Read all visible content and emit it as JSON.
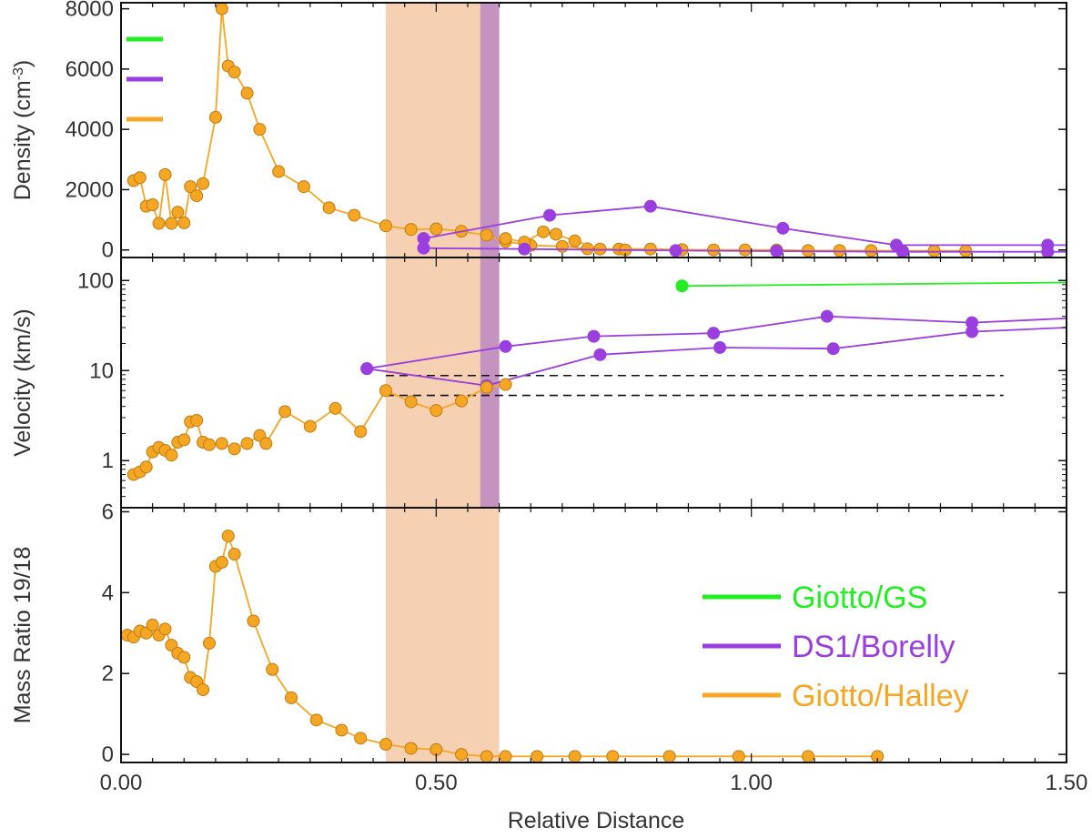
{
  "chart_data": {
    "type": "line",
    "xlabel": "Relative Distance",
    "xlim": [
      0,
      1.5
    ],
    "xticks": [
      "0.00",
      "0.50",
      "1.00",
      "1.50"
    ],
    "xtick_values": [
      0,
      0.5,
      1.0,
      1.5
    ],
    "colors": {
      "green": "#22ee22",
      "purple": "#9a3ee0",
      "orange": "#f5a623",
      "orange_band": "#f6d0b3",
      "purple_band": "#c493bf",
      "marker_edge": "#c07a10"
    },
    "shaded_regions": [
      {
        "name": "orange-band",
        "x_range": [
          0.42,
          0.6
        ],
        "color": "#f6d0b3",
        "panels": [
          "density",
          "velocity",
          "mass_ratio"
        ]
      },
      {
        "name": "purple-band",
        "x_range": [
          0.57,
          0.6
        ],
        "color": "#c493bf",
        "panels": [
          "density",
          "velocity"
        ]
      }
    ],
    "legend": {
      "placement": "inside lower-right of bottom panel",
      "entries": [
        {
          "label": "Giotto/GS",
          "color": "#22ee22"
        },
        {
          "label": "DS1/Borelly",
          "color": "#9a3ee0"
        },
        {
          "label": "Giotto/Halley",
          "color": "#f5a623"
        }
      ]
    },
    "panels": [
      {
        "id": "density",
        "ylabel": "Density (cm",
        "ylabel_sup": "-3",
        "ylabel_end": ")",
        "scale": "linear",
        "ylim": [
          -250,
          8200
        ],
        "yticks": [
          "0",
          "2000",
          "4000",
          "6000",
          "8000"
        ],
        "ytick_values": [
          0,
          2000,
          4000,
          6000,
          8000
        ],
        "series": [
          {
            "name": "Giotto/Halley",
            "color": "#f5a623",
            "x": [
              0.02,
              0.03,
              0.04,
              0.05,
              0.06,
              0.07,
              0.08,
              0.09,
              0.1,
              0.11,
              0.12,
              0.13,
              0.15,
              0.16,
              0.17,
              0.18,
              0.2,
              0.22,
              0.25,
              0.29,
              0.33,
              0.37,
              0.42,
              0.46,
              0.5,
              0.54,
              0.58,
              0.61,
              0.65,
              0.7,
              0.74,
              0.79,
              0.84,
              0.89,
              0.94,
              0.99,
              1.04,
              1.09,
              1.14,
              1.19,
              1.24,
              1.29,
              1.34
            ],
            "values": [
              2300,
              2400,
              1450,
              1500,
              880,
              2500,
              880,
              1250,
              900,
              2100,
              1800,
              2200,
              4400,
              8000,
              6100,
              5900,
              5200,
              4000,
              2600,
              2100,
              1400,
              1150,
              800,
              680,
              700,
              620,
              490,
              280,
              150,
              120,
              40,
              30,
              30,
              10,
              0,
              0,
              0,
              -20,
              -20,
              -20,
              -30,
              -30,
              -30
            ]
          },
          {
            "name": "Giotto/Halley (second branch)",
            "color": "#f5a623",
            "x": [
              0.61,
              0.64,
              0.67,
              0.69,
              0.72,
              0.76,
              0.8
            ],
            "values": [
              380,
              260,
              600,
              520,
              300,
              30,
              0
            ]
          },
          {
            "name": "DS1/Borelly",
            "color": "#9a3ee0",
            "x": [
              0.48,
              0.68,
              0.84,
              1.05,
              1.23,
              1.47,
              1.5
            ],
            "values": [
              380,
              1150,
              1450,
              720,
              160,
              160,
              160
            ]
          },
          {
            "name": "DS1/Borelly (inbound)",
            "color": "#9a3ee0",
            "x": [
              0.48,
              0.64,
              0.88,
              1.04,
              1.24,
              1.47,
              1.5
            ],
            "values": [
              60,
              30,
              -20,
              -40,
              -60,
              -60,
              -60
            ]
          }
        ]
      },
      {
        "id": "velocity",
        "ylabel": "Velocity (km/s)",
        "scale": "log",
        "ylim": [
          0.3,
          180
        ],
        "yticks": [
          "1",
          "10",
          "100"
        ],
        "ytick_values": [
          1,
          10,
          100
        ],
        "reference_lines": [
          8.8,
          5.3
        ],
        "reference_line_xrange": [
          0.42,
          1.4
        ],
        "series": [
          {
            "name": "Giotto/GS",
            "color": "#22ee22",
            "x": [
              0.89,
              1.5
            ],
            "values": [
              87,
              95
            ]
          },
          {
            "name": "DS1/Borelly",
            "color": "#9a3ee0",
            "x": [
              0.39,
              0.58,
              0.76,
              0.95,
              1.13,
              1.35,
              1.5
            ],
            "values": [
              10.5,
              6.8,
              15,
              18,
              17.5,
              27,
              30
            ]
          },
          {
            "name": "DS1/Borelly (second leg)",
            "color": "#9a3ee0",
            "x": [
              0.39,
              0.61,
              0.75,
              0.94,
              1.12,
              1.35,
              1.5
            ],
            "values": [
              10.5,
              18.5,
              24,
              26,
              40,
              34,
              38
            ]
          },
          {
            "name": "Giotto/Halley",
            "color": "#f5a623",
            "x": [
              0.02,
              0.03,
              0.04,
              0.05,
              0.06,
              0.07,
              0.08,
              0.09,
              0.1,
              0.11,
              0.12,
              0.13,
              0.14,
              0.16,
              0.18,
              0.2,
              0.22,
              0.23,
              0.26,
              0.3,
              0.34,
              0.38,
              0.42,
              0.46,
              0.5,
              0.54,
              0.58,
              0.61
            ],
            "values": [
              0.7,
              0.75,
              0.85,
              1.25,
              1.4,
              1.3,
              1.15,
              1.6,
              1.7,
              2.7,
              2.8,
              1.6,
              1.5,
              1.55,
              1.35,
              1.55,
              1.9,
              1.55,
              3.5,
              2.4,
              3.8,
              2.1,
              6.0,
              4.5,
              3.6,
              4.6,
              6.5,
              7.0
            ]
          }
        ]
      },
      {
        "id": "mass_ratio",
        "ylabel": "Mass Ratio 19/18",
        "scale": "linear",
        "ylim": [
          -0.2,
          6.1
        ],
        "yticks": [
          "0",
          "2",
          "4",
          "6"
        ],
        "ytick_values": [
          0,
          2,
          4,
          6
        ],
        "series": [
          {
            "name": "Giotto/Halley",
            "color": "#f5a623",
            "x": [
              0.01,
              0.02,
              0.03,
              0.04,
              0.05,
              0.06,
              0.07,
              0.08,
              0.09,
              0.1,
              0.11,
              0.12,
              0.13,
              0.14,
              0.15,
              0.16,
              0.17,
              0.18,
              0.21,
              0.24,
              0.27,
              0.31,
              0.35,
              0.38,
              0.42,
              0.46,
              0.5,
              0.54,
              0.58,
              0.61,
              0.66,
              0.72,
              0.78,
              0.87,
              0.98,
              1.09,
              1.2
            ],
            "values": [
              2.95,
              2.9,
              3.05,
              3.0,
              3.2,
              2.95,
              3.1,
              2.7,
              2.5,
              2.4,
              1.9,
              1.8,
              1.6,
              2.75,
              4.65,
              4.75,
              5.4,
              4.95,
              3.3,
              2.1,
              1.4,
              0.85,
              0.6,
              0.4,
              0.25,
              0.15,
              0.12,
              0.0,
              -0.05,
              -0.05,
              -0.05,
              -0.05,
              -0.05,
              -0.05,
              -0.05,
              -0.05,
              -0.05
            ]
          }
        ]
      }
    ]
  }
}
